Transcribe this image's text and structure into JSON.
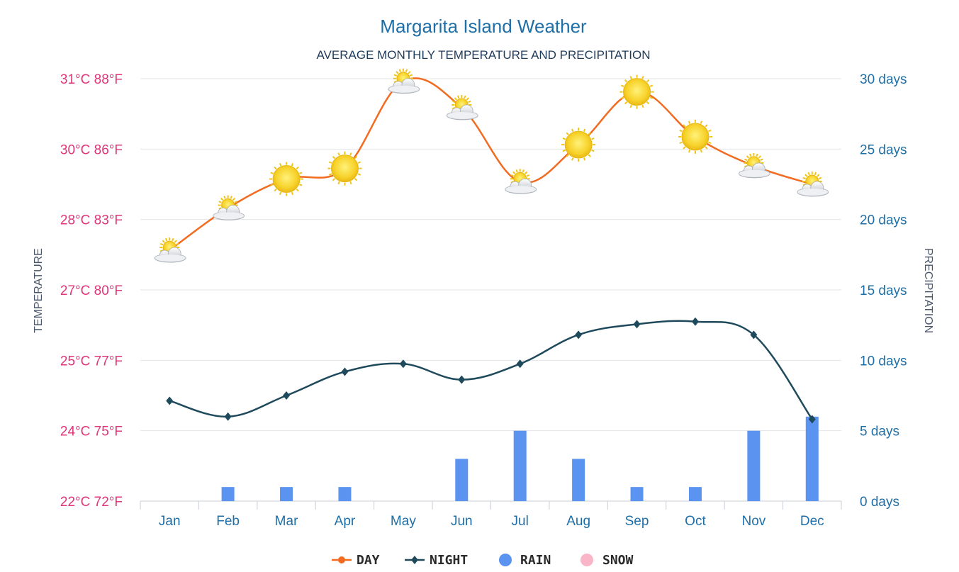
{
  "chart_data": {
    "type": "line",
    "title": "Margarita Island Weather",
    "subtitle": "AVERAGE MONTHLY TEMPERATURE AND PRECIPITATION",
    "ylabel_left": "TEMPERATURE",
    "ylabel_right": "PRECIPITATION",
    "categories": [
      "Jan",
      "Feb",
      "Mar",
      "Apr",
      "May",
      "Jun",
      "Jul",
      "Aug",
      "Sep",
      "Oct",
      "Nov",
      "Dec"
    ],
    "left_axis": {
      "ticks": [
        "31°C 88°F",
        "30°C 86°F",
        "28°C 83°F",
        "27°C 80°F",
        "25°C 77°F",
        "24°C 75°F",
        "22°C 72°F"
      ],
      "ylim_f": [
        72,
        88
      ]
    },
    "right_axis": {
      "ticks": [
        "30 days",
        "25 days",
        "20 days",
        "15 days",
        "10 days",
        "5 days",
        "0 days"
      ],
      "ylim": [
        0,
        30
      ]
    },
    "series": [
      {
        "name": "DAY",
        "unit": "°F",
        "color": "#f26b21",
        "values": [
          81.5,
          83.1,
          84.2,
          84.6,
          87.9,
          86.9,
          84.1,
          85.5,
          87.5,
          85.8,
          84.7,
          84.0
        ],
        "icons": [
          "partly-cloudy-sun-icon",
          "partly-cloudy-sun-icon",
          "sun-icon",
          "sun-icon",
          "partly-cloudy-sun-icon",
          "partly-cloudy-sun-icon",
          "partly-cloudy-sun-icon",
          "sun-icon",
          "sun-icon",
          "sun-icon",
          "partly-cloudy-sun-icon",
          "partly-cloudy-sun-icon"
        ]
      },
      {
        "name": "NIGHT",
        "unit": "°F",
        "color": "#1f4a5c",
        "values": [
          75.8,
          75.2,
          76.0,
          76.9,
          77.2,
          76.6,
          77.2,
          78.3,
          78.7,
          78.8,
          78.3,
          75.1
        ]
      },
      {
        "name": "RAIN",
        "unit": "days",
        "color": "#5b93f0",
        "values": [
          0,
          1,
          1,
          1,
          0,
          3,
          5,
          3,
          1,
          1,
          5,
          6
        ]
      },
      {
        "name": "SNOW",
        "unit": "days",
        "color": "#f8b6c8",
        "values": [
          0,
          0,
          0,
          0,
          0,
          0,
          0,
          0,
          0,
          0,
          0,
          0
        ]
      }
    ],
    "grid": true,
    "legend_position": "bottom-center"
  }
}
